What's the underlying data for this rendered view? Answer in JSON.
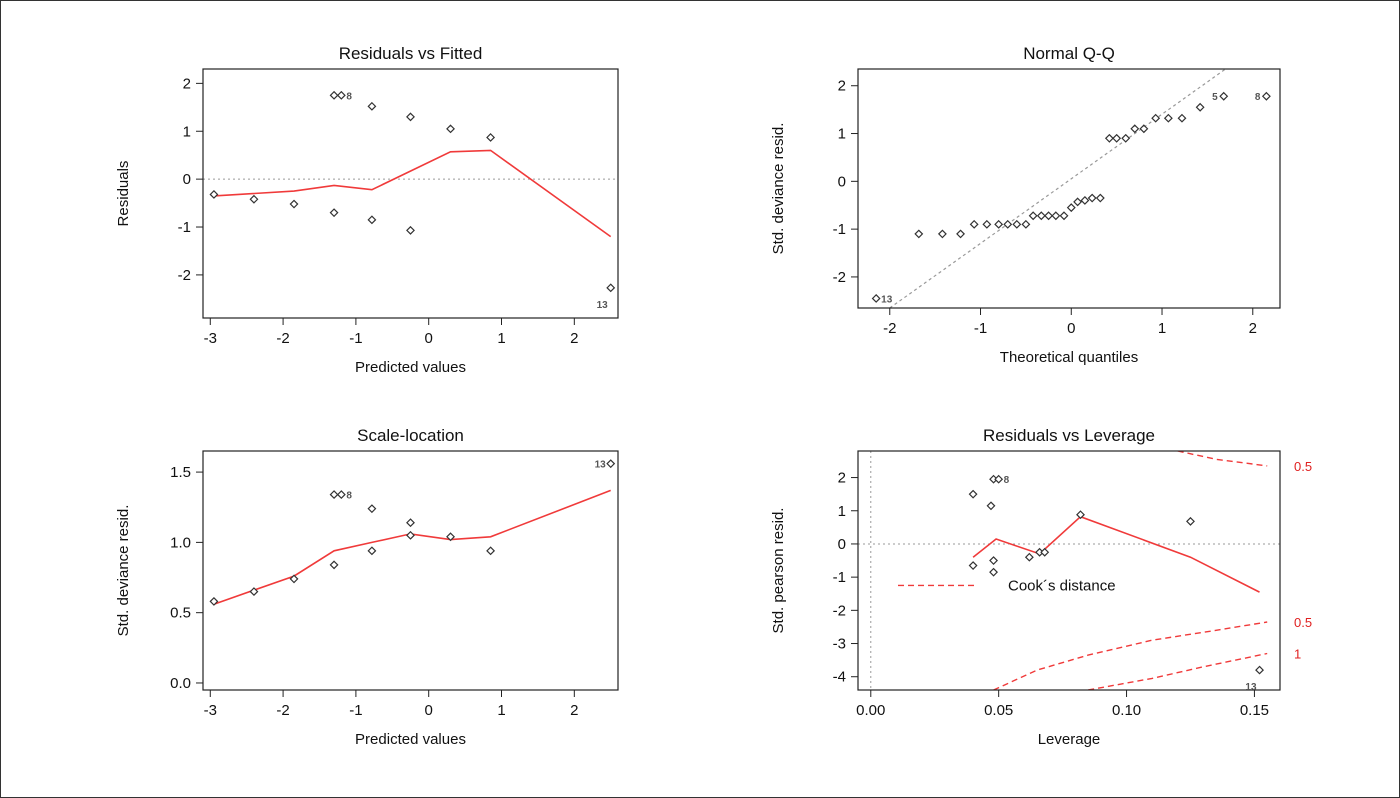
{
  "chart_data": [
    {
      "type": "scatter",
      "title": "Residuals vs Fitted",
      "xlabel": "Predicted values",
      "ylabel": "Residuals",
      "xlim": [
        -3.1,
        2.6
      ],
      "ylim": [
        -2.9,
        2.3
      ],
      "xticks": [
        {
          "v": -3,
          "label": "-3"
        },
        {
          "v": -2,
          "label": "-2"
        },
        {
          "v": -1,
          "label": "-1"
        },
        {
          "v": 0,
          "label": "0"
        },
        {
          "v": 1,
          "label": "1"
        },
        {
          "v": 2,
          "label": "2"
        }
      ],
      "yticks": [
        {
          "v": -2,
          "label": "-2"
        },
        {
          "v": -1,
          "label": "-1"
        },
        {
          "v": 0,
          "label": "0"
        },
        {
          "v": 1,
          "label": "1"
        },
        {
          "v": 2,
          "label": "2"
        }
      ],
      "points": [
        {
          "x": -2.95,
          "y": -0.32
        },
        {
          "x": -2.4,
          "y": -0.42
        },
        {
          "x": -1.85,
          "y": -0.52
        },
        {
          "x": -1.3,
          "y": -0.7
        },
        {
          "x": -1.3,
          "y": 1.75
        },
        {
          "x": -1.2,
          "y": 1.75
        },
        {
          "x": -0.78,
          "y": 1.52
        },
        {
          "x": -0.78,
          "y": -0.85
        },
        {
          "x": -0.25,
          "y": 1.3
        },
        {
          "x": -0.25,
          "y": -1.07
        },
        {
          "x": 0.3,
          "y": 1.05
        },
        {
          "x": 0.85,
          "y": 0.87
        },
        {
          "x": 2.5,
          "y": -2.27
        }
      ],
      "smooth": [
        {
          "x": -2.95,
          "y": -0.35
        },
        {
          "x": -1.85,
          "y": -0.25
        },
        {
          "x": -1.3,
          "y": -0.13
        },
        {
          "x": -0.78,
          "y": -0.22
        },
        {
          "x": 0.3,
          "y": 0.57
        },
        {
          "x": 0.85,
          "y": 0.6
        },
        {
          "x": 2.5,
          "y": -1.2
        }
      ],
      "hline": {
        "y": 0
      },
      "point_labels": [
        {
          "x": -1.2,
          "y": 1.75,
          "text": "8",
          "anchor": "right"
        },
        {
          "x": 2.5,
          "y": -2.27,
          "text": "13",
          "anchor": "below-left"
        }
      ]
    },
    {
      "type": "scatter",
      "title": "Normal Q-Q",
      "xlabel": "Theoretical quantiles",
      "ylabel": "Std. deviance resid.",
      "xlim": [
        -2.35,
        2.3
      ],
      "ylim": [
        -2.65,
        2.35
      ],
      "xticks": [
        {
          "v": -2,
          "label": "-2"
        },
        {
          "v": -1,
          "label": "-1"
        },
        {
          "v": 0,
          "label": "0"
        },
        {
          "v": 1,
          "label": "1"
        },
        {
          "v": 2,
          "label": "2"
        }
      ],
      "yticks": [
        {
          "v": -2,
          "label": "-2"
        },
        {
          "v": -1,
          "label": "-1"
        },
        {
          "v": 0,
          "label": "0"
        },
        {
          "v": 1,
          "label": "1"
        },
        {
          "v": 2,
          "label": "2"
        }
      ],
      "points": [
        {
          "x": -2.15,
          "y": -2.45
        },
        {
          "x": -1.68,
          "y": -1.1
        },
        {
          "x": -1.42,
          "y": -1.1
        },
        {
          "x": -1.22,
          "y": -1.1
        },
        {
          "x": -1.07,
          "y": -0.9
        },
        {
          "x": -0.93,
          "y": -0.9
        },
        {
          "x": -0.8,
          "y": -0.9
        },
        {
          "x": -0.7,
          "y": -0.9
        },
        {
          "x": -0.6,
          "y": -0.9
        },
        {
          "x": -0.5,
          "y": -0.9
        },
        {
          "x": -0.42,
          "y": -0.72
        },
        {
          "x": -0.33,
          "y": -0.72
        },
        {
          "x": -0.25,
          "y": -0.72
        },
        {
          "x": -0.17,
          "y": -0.72
        },
        {
          "x": -0.08,
          "y": -0.72
        },
        {
          "x": 0.0,
          "y": -0.55
        },
        {
          "x": 0.07,
          "y": -0.43
        },
        {
          "x": 0.15,
          "y": -0.4
        },
        {
          "x": 0.23,
          "y": -0.35
        },
        {
          "x": 0.32,
          "y": -0.35
        },
        {
          "x": 0.42,
          "y": 0.9
        },
        {
          "x": 0.5,
          "y": 0.9
        },
        {
          "x": 0.6,
          "y": 0.9
        },
        {
          "x": 0.7,
          "y": 1.1
        },
        {
          "x": 0.8,
          "y": 1.1
        },
        {
          "x": 0.93,
          "y": 1.32
        },
        {
          "x": 1.07,
          "y": 1.32
        },
        {
          "x": 1.22,
          "y": 1.32
        },
        {
          "x": 1.42,
          "y": 1.55
        },
        {
          "x": 1.68,
          "y": 1.78
        },
        {
          "x": 2.15,
          "y": 1.78
        }
      ],
      "ref_line": [
        {
          "x": -2.0,
          "y": -2.65
        },
        {
          "x": 1.7,
          "y": 2.35
        }
      ],
      "point_labels": [
        {
          "x": -2.15,
          "y": -2.45,
          "text": "13",
          "anchor": "right"
        },
        {
          "x": 1.68,
          "y": 1.78,
          "text": "5",
          "anchor": "left"
        },
        {
          "x": 2.15,
          "y": 1.78,
          "text": "8",
          "anchor": "left"
        }
      ]
    },
    {
      "type": "scatter",
      "title": "Scale-location",
      "xlabel": "Predicted values",
      "ylabel": "Std. deviance resid.",
      "xlim": [
        -3.1,
        2.6
      ],
      "ylim": [
        -0.05,
        1.65
      ],
      "xticks": [
        {
          "v": -3,
          "label": "-3"
        },
        {
          "v": -2,
          "label": "-2"
        },
        {
          "v": -1,
          "label": "-1"
        },
        {
          "v": 0,
          "label": "0"
        },
        {
          "v": 1,
          "label": "1"
        },
        {
          "v": 2,
          "label": "2"
        }
      ],
      "yticks": [
        {
          "v": 0.0,
          "label": "0.0"
        },
        {
          "v": 0.5,
          "label": "0.5"
        },
        {
          "v": 1.0,
          "label": "1.0"
        },
        {
          "v": 1.5,
          "label": "1.5"
        }
      ],
      "points": [
        {
          "x": -2.95,
          "y": 0.58
        },
        {
          "x": -2.4,
          "y": 0.65
        },
        {
          "x": -1.85,
          "y": 0.74
        },
        {
          "x": -1.3,
          "y": 0.84
        },
        {
          "x": -1.3,
          "y": 1.34
        },
        {
          "x": -1.2,
          "y": 1.34
        },
        {
          "x": -0.78,
          "y": 1.24
        },
        {
          "x": -0.78,
          "y": 0.94
        },
        {
          "x": -0.25,
          "y": 1.14
        },
        {
          "x": -0.25,
          "y": 1.05
        },
        {
          "x": 0.3,
          "y": 1.04
        },
        {
          "x": 0.85,
          "y": 0.94
        },
        {
          "x": 2.5,
          "y": 1.56
        }
      ],
      "smooth": [
        {
          "x": -2.95,
          "y": 0.56
        },
        {
          "x": -1.85,
          "y": 0.76
        },
        {
          "x": -1.3,
          "y": 0.94
        },
        {
          "x": -0.78,
          "y": 1.0
        },
        {
          "x": -0.25,
          "y": 1.06
        },
        {
          "x": 0.3,
          "y": 1.02
        },
        {
          "x": 0.85,
          "y": 1.04
        },
        {
          "x": 2.5,
          "y": 1.37
        }
      ],
      "point_labels": [
        {
          "x": -1.2,
          "y": 1.34,
          "text": "8",
          "anchor": "right"
        },
        {
          "x": 2.5,
          "y": 1.56,
          "text": "13",
          "anchor": "left-of"
        }
      ]
    },
    {
      "type": "scatter",
      "title": "Residuals vs Leverage",
      "xlabel": "Leverage",
      "ylabel": "Std. pearson resid.",
      "xlim": [
        -0.005,
        0.16
      ],
      "ylim": [
        -4.4,
        2.8
      ],
      "xticks": [
        {
          "v": 0.0,
          "label": "0.00"
        },
        {
          "v": 0.05,
          "label": "0.05"
        },
        {
          "v": 0.1,
          "label": "0.10"
        },
        {
          "v": 0.15,
          "label": "0.15"
        }
      ],
      "yticks": [
        {
          "v": -4,
          "label": "-4"
        },
        {
          "v": -3,
          "label": "-3"
        },
        {
          "v": -2,
          "label": "-2"
        },
        {
          "v": -1,
          "label": "-1"
        },
        {
          "v": 0,
          "label": "0"
        },
        {
          "v": 1,
          "label": "1"
        },
        {
          "v": 2,
          "label": "2"
        }
      ],
      "points": [
        {
          "x": 0.04,
          "y": 1.5
        },
        {
          "x": 0.04,
          "y": -0.65
        },
        {
          "x": 0.047,
          "y": 1.15
        },
        {
          "x": 0.048,
          "y": 1.95
        },
        {
          "x": 0.05,
          "y": 1.95
        },
        {
          "x": 0.048,
          "y": -0.85
        },
        {
          "x": 0.048,
          "y": -0.5
        },
        {
          "x": 0.062,
          "y": -0.4
        },
        {
          "x": 0.066,
          "y": -0.25
        },
        {
          "x": 0.068,
          "y": -0.25
        },
        {
          "x": 0.082,
          "y": 0.88
        },
        {
          "x": 0.125,
          "y": 0.68
        },
        {
          "x": 0.152,
          "y": -3.8
        }
      ],
      "smooth": [
        {
          "x": 0.04,
          "y": -0.4
        },
        {
          "x": 0.049,
          "y": 0.15
        },
        {
          "x": 0.066,
          "y": -0.3
        },
        {
          "x": 0.082,
          "y": 0.82
        },
        {
          "x": 0.125,
          "y": -0.4
        },
        {
          "x": 0.152,
          "y": -1.45
        }
      ],
      "hline": {
        "y": 0
      },
      "vline": {
        "x": 0
      },
      "cook_curves": [
        {
          "points": [
            {
              "x": 0.12,
              "y": 2.8
            },
            {
              "x": 0.135,
              "y": 2.55
            },
            {
              "x": 0.155,
              "y": 2.35
            }
          ]
        },
        {
          "points": [
            {
              "x": 0.048,
              "y": -4.4
            },
            {
              "x": 0.065,
              "y": -3.8
            },
            {
              "x": 0.085,
              "y": -3.35
            },
            {
              "x": 0.11,
              "y": -2.9
            },
            {
              "x": 0.135,
              "y": -2.6
            },
            {
              "x": 0.155,
              "y": -2.35
            }
          ]
        },
        {
          "points": [
            {
              "x": 0.085,
              "y": -4.4
            },
            {
              "x": 0.11,
              "y": -4.05
            },
            {
              "x": 0.13,
              "y": -3.7
            },
            {
              "x": 0.155,
              "y": -3.3
            }
          ]
        }
      ],
      "cook_labels": [
        {
          "x": 0.155,
          "y": 2.35,
          "text": "0.5"
        },
        {
          "x": 0.155,
          "y": -2.35,
          "text": "0.5"
        },
        {
          "x": 0.155,
          "y": -3.3,
          "text": "1"
        }
      ],
      "legend": {
        "text": "Cook´s distance",
        "style": "dashed-red"
      },
      "point_labels": [
        {
          "x": 0.05,
          "y": 1.95,
          "text": "8",
          "anchor": "right"
        },
        {
          "x": 0.152,
          "y": -3.8,
          "text": "13",
          "anchor": "below-left"
        }
      ]
    }
  ]
}
